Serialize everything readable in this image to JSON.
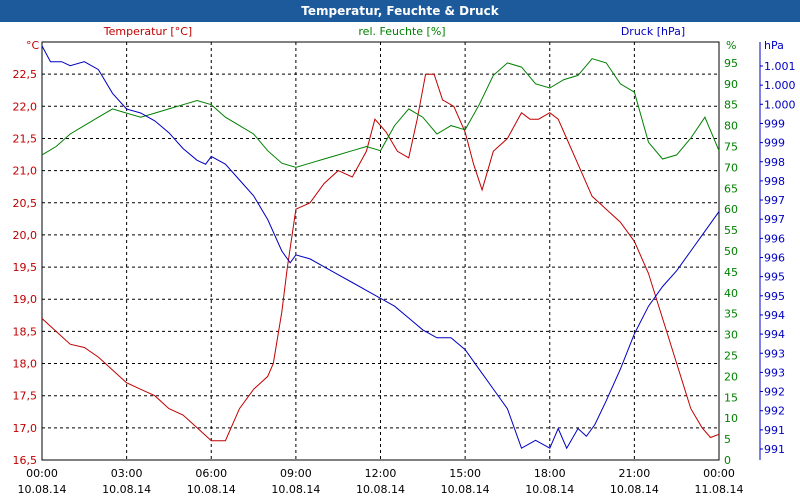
{
  "window": {
    "title": "Temperatur, Feuchte & Druck"
  },
  "chart_data": {
    "type": "line",
    "title": "Temperatur, Feuchte & Druck",
    "x_ticks": [
      {
        "time": "00:00",
        "date": "10.08.14"
      },
      {
        "time": "03:00",
        "date": "10.08.14"
      },
      {
        "time": "06:00",
        "date": "10.08.14"
      },
      {
        "time": "09:00",
        "date": "10.08.14"
      },
      {
        "time": "12:00",
        "date": "10.08.14"
      },
      {
        "time": "15:00",
        "date": "10.08.14"
      },
      {
        "time": "18:00",
        "date": "10.08.14"
      },
      {
        "time": "21:00",
        "date": "10.08.14"
      },
      {
        "time": "00:00",
        "date": "11.08.14"
      }
    ],
    "xlim": [
      0,
      24
    ],
    "axes": {
      "temperature": {
        "label": "Temperatur [°C]",
        "unit": "°C",
        "ylim": [
          16.5,
          23.0
        ],
        "ticks": [
          "16,5",
          "17,0",
          "17,5",
          "18,0",
          "18,5",
          "19,0",
          "19,5",
          "20,0",
          "20,5",
          "21,0",
          "21,5",
          "22,0",
          "22,5"
        ],
        "color": "#c00000"
      },
      "humidity": {
        "label": "rel. Feuchte [%]",
        "unit": "%",
        "ylim": [
          0,
          100
        ],
        "ticks": [
          "0",
          "5",
          "10",
          "15",
          "20",
          "25",
          "30",
          "35",
          "40",
          "45",
          "50",
          "55",
          "60",
          "65",
          "70",
          "75",
          "80",
          "85",
          "90",
          "95"
        ],
        "color": "#008000"
      },
      "pressure": {
        "label": "Druck [hPa]",
        "unit": "hPa",
        "ticks": [
          "991",
          "991",
          "992",
          "992",
          "993",
          "993",
          "994",
          "994",
          "995",
          "995",
          "996",
          "996",
          "997",
          "997",
          "998",
          "998",
          "999",
          "999",
          "1.000",
          "1.000",
          "1.001"
        ],
        "color": "#0000c0"
      }
    },
    "series": [
      {
        "name": "Temperatur",
        "color": "#c00000",
        "x": [
          0,
          0.5,
          1,
          1.5,
          2,
          2.5,
          3,
          3.5,
          4,
          4.5,
          5,
          5.5,
          6,
          6.5,
          7,
          7.5,
          8,
          8.2,
          8.5,
          8.7,
          9,
          9.5,
          10,
          10.5,
          11,
          11.5,
          11.8,
          12.2,
          12.6,
          13,
          13.3,
          13.6,
          13.9,
          14.2,
          14.6,
          15,
          15.3,
          15.6,
          16,
          16.5,
          17,
          17.3,
          17.6,
          18,
          18.3,
          18.6,
          19,
          19.5,
          20,
          20.5,
          21,
          21.5,
          22,
          22.5,
          23,
          23.4,
          23.7,
          24
        ],
        "y": [
          18.7,
          18.5,
          18.3,
          18.25,
          18.1,
          17.9,
          17.7,
          17.6,
          17.5,
          17.3,
          17.2,
          17.0,
          16.8,
          16.8,
          17.3,
          17.6,
          17.8,
          18.0,
          18.8,
          19.5,
          20.4,
          20.5,
          20.8,
          21.0,
          20.9,
          21.3,
          21.8,
          21.6,
          21.3,
          21.2,
          21.8,
          22.5,
          22.5,
          22.1,
          22.0,
          21.6,
          21.1,
          20.7,
          21.3,
          21.5,
          21.9,
          21.8,
          21.8,
          21.9,
          21.8,
          21.5,
          21.1,
          20.6,
          20.4,
          20.2,
          19.9,
          19.4,
          18.7,
          18.0,
          17.3,
          17.0,
          16.85,
          16.9
        ]
      },
      {
        "name": "rel. Feuchte",
        "color": "#008000",
        "x": [
          0,
          0.5,
          1,
          1.5,
          2,
          2.5,
          3,
          3.5,
          4,
          4.5,
          5,
          5.5,
          6,
          6.5,
          7,
          7.5,
          8,
          8.5,
          9,
          9.5,
          10,
          10.5,
          11,
          11.5,
          12,
          12.5,
          13,
          13.5,
          14,
          14.5,
          15,
          15.5,
          16,
          16.5,
          17,
          17.5,
          18,
          18.5,
          19,
          19.5,
          20,
          20.5,
          21,
          21.5,
          22,
          22.5,
          23,
          23.5,
          24
        ],
        "y": [
          73,
          75,
          78,
          80,
          82,
          84,
          83,
          82,
          83,
          84,
          85,
          86,
          85,
          82,
          80,
          78,
          74,
          71,
          70,
          71,
          72,
          73,
          74,
          75,
          74,
          80,
          84,
          82,
          78,
          80,
          79,
          85,
          92,
          95,
          94,
          90,
          89,
          91,
          92,
          96,
          95,
          90,
          88,
          76,
          72,
          73,
          77,
          82,
          74
        ]
      },
      {
        "name": "Druck",
        "color": "#0000c0",
        "y_scale_min": 990.7,
        "y_scale_max": 1001.3,
        "x": [
          0,
          0.3,
          0.7,
          1,
          1.5,
          2,
          2.5,
          3,
          3.5,
          4,
          4.5,
          5,
          5.5,
          5.8,
          6,
          6.5,
          7,
          7.5,
          8,
          8.5,
          8.8,
          9,
          9.5,
          10,
          10.5,
          11,
          11.5,
          12,
          12.5,
          13,
          13.5,
          14,
          14.5,
          15,
          15.5,
          16,
          16.5,
          17,
          17.5,
          18,
          18.3,
          18.6,
          19,
          19.3,
          19.6,
          20,
          20.5,
          21,
          21.5,
          22,
          22.5,
          23,
          23.5,
          24
        ],
        "y": [
          1001.2,
          1000.8,
          1000.8,
          1000.7,
          1000.8,
          1000.6,
          1000.0,
          999.6,
          999.5,
          999.3,
          999.0,
          998.6,
          998.3,
          998.2,
          998.4,
          998.2,
          997.8,
          997.4,
          996.8,
          996.0,
          995.7,
          995.9,
          995.8,
          995.6,
          995.4,
          995.2,
          995.0,
          994.8,
          994.6,
          994.3,
          994.0,
          993.8,
          993.8,
          993.5,
          993.0,
          992.5,
          992.0,
          991.0,
          991.2,
          991.0,
          991.5,
          991.0,
          991.5,
          991.3,
          991.6,
          992.2,
          993.0,
          993.9,
          994.6,
          995.1,
          995.5,
          996.0,
          996.5,
          997.0
        ]
      }
    ]
  }
}
